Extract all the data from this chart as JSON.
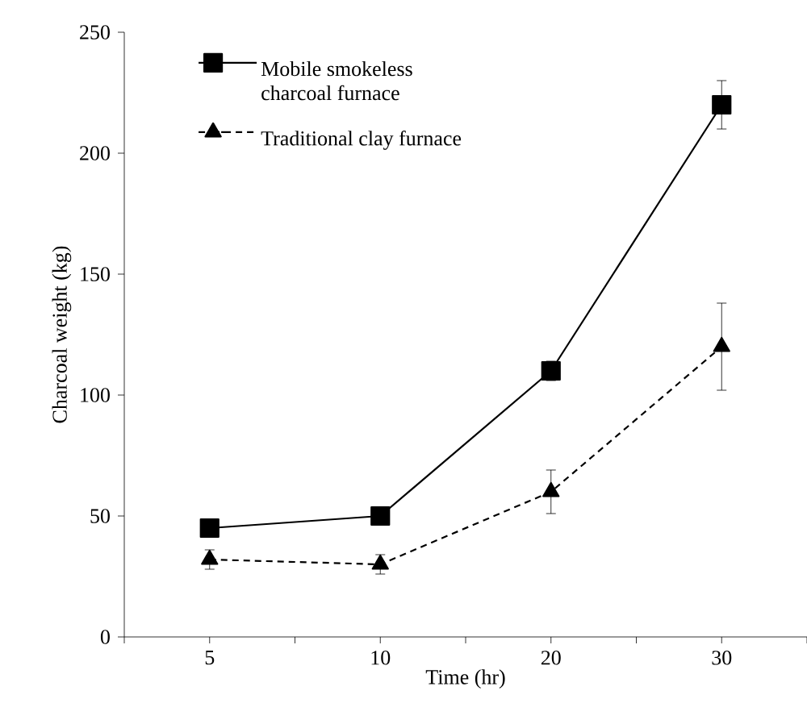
{
  "chart_data": {
    "type": "line",
    "xlabel": "Time (hr)",
    "ylabel": "Charcoal weight (kg)",
    "categories": [
      "5",
      "10",
      "20",
      "30"
    ],
    "series": [
      {
        "name": "Mobile smokeless charcoal furnace",
        "color": "#000000",
        "marker": "square",
        "line_style": "solid",
        "values": [
          45,
          50,
          110,
          220
        ],
        "errors": [
          null,
          null,
          4,
          10
        ]
      },
      {
        "name": "Traditional clay furnace",
        "color": "#000000",
        "marker": "triangle",
        "line_style": "dashed",
        "values": [
          32,
          30,
          60,
          120
        ],
        "errors": [
          4,
          4,
          9,
          18
        ]
      }
    ],
    "ylim": [
      0,
      250
    ],
    "yticks": [
      0,
      50,
      100,
      150,
      200,
      250
    ],
    "grid": false,
    "legend": "top left"
  }
}
